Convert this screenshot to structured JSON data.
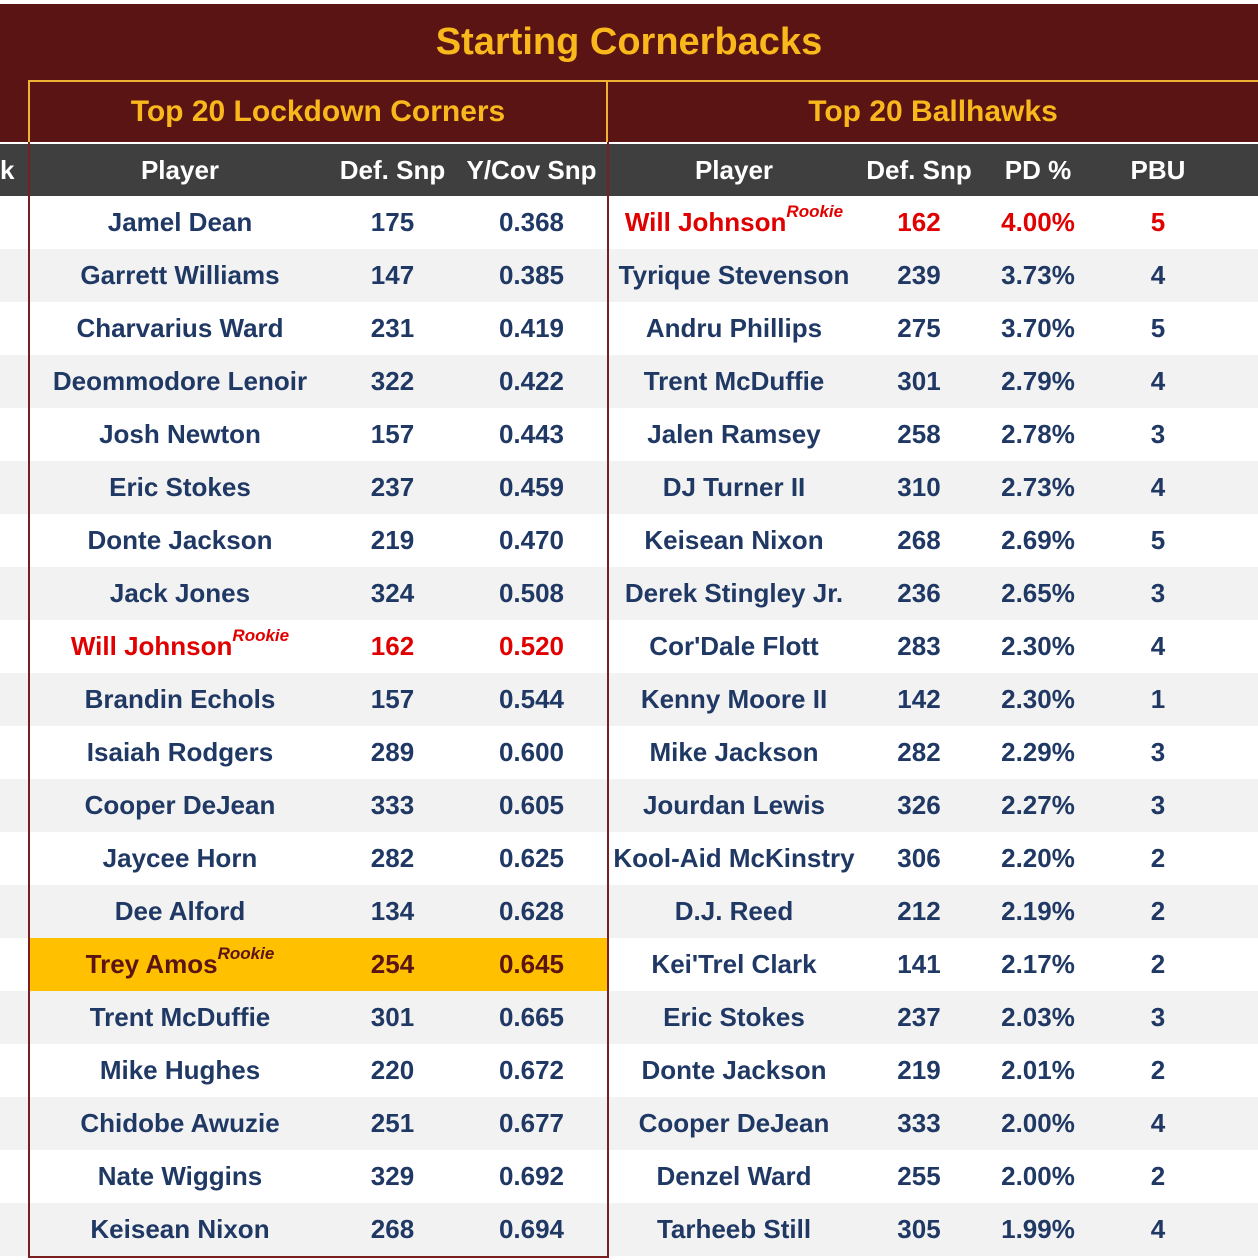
{
  "title": "Starting Cornerbacks",
  "left_section": {
    "title": "Top 20 Lockdown Corners",
    "columns": [
      "Player",
      "Def. Snp",
      "Y/Cov Snp"
    ],
    "rows": [
      {
        "player": "Jamel Dean",
        "snaps": "175",
        "val": "0.368"
      },
      {
        "player": "Garrett Williams",
        "snaps": "147",
        "val": "0.385"
      },
      {
        "player": "Charvarius Ward",
        "snaps": "231",
        "val": "0.419"
      },
      {
        "player": "Deommodore Lenoir",
        "snaps": "322",
        "val": "0.422"
      },
      {
        "player": "Josh Newton",
        "snaps": "157",
        "val": "0.443"
      },
      {
        "player": "Eric Stokes",
        "snaps": "237",
        "val": "0.459"
      },
      {
        "player": "Donte Jackson",
        "snaps": "219",
        "val": "0.470"
      },
      {
        "player": "Jack Jones",
        "snaps": "324",
        "val": "0.508"
      },
      {
        "player": "Will Johnson",
        "snaps": "162",
        "val": "0.520",
        "tag": "Rookie",
        "style": "red"
      },
      {
        "player": "Brandin Echols",
        "snaps": "157",
        "val": "0.544"
      },
      {
        "player": "Isaiah Rodgers",
        "snaps": "289",
        "val": "0.600"
      },
      {
        "player": "Cooper DeJean",
        "snaps": "333",
        "val": "0.605"
      },
      {
        "player": "Jaycee Horn",
        "snaps": "282",
        "val": "0.625"
      },
      {
        "player": "Dee Alford",
        "snaps": "134",
        "val": "0.628"
      },
      {
        "player": "Trey Amos",
        "snaps": "254",
        "val": "0.645",
        "tag": "Rookie",
        "style": "highlight"
      },
      {
        "player": "Trent McDuffie",
        "snaps": "301",
        "val": "0.665"
      },
      {
        "player": "Mike Hughes",
        "snaps": "220",
        "val": "0.672"
      },
      {
        "player": "Chidobe Awuzie",
        "snaps": "251",
        "val": "0.677"
      },
      {
        "player": "Nate Wiggins",
        "snaps": "329",
        "val": "0.692"
      },
      {
        "player": "Keisean Nixon",
        "snaps": "268",
        "val": "0.694"
      }
    ]
  },
  "right_section": {
    "title": "Top 20 Ballhawks",
    "columns": [
      "Player",
      "Def. Snp",
      "PD %",
      "PBU"
    ],
    "rows": [
      {
        "player": "Will Johnson",
        "snaps": "162",
        "pd": "4.00%",
        "pbu": "5",
        "tag": "Rookie",
        "style": "red"
      },
      {
        "player": "Tyrique Stevenson",
        "snaps": "239",
        "pd": "3.73%",
        "pbu": "4"
      },
      {
        "player": "Andru Phillips",
        "snaps": "275",
        "pd": "3.70%",
        "pbu": "5"
      },
      {
        "player": "Trent McDuffie",
        "snaps": "301",
        "pd": "2.79%",
        "pbu": "4"
      },
      {
        "player": "Jalen Ramsey",
        "snaps": "258",
        "pd": "2.78%",
        "pbu": "3"
      },
      {
        "player": "DJ Turner II",
        "snaps": "310",
        "pd": "2.73%",
        "pbu": "4"
      },
      {
        "player": "Keisean Nixon",
        "snaps": "268",
        "pd": "2.69%",
        "pbu": "5"
      },
      {
        "player": "Derek Stingley Jr.",
        "snaps": "236",
        "pd": "2.65%",
        "pbu": "3"
      },
      {
        "player": "Cor'Dale Flott",
        "snaps": "283",
        "pd": "2.30%",
        "pbu": "4"
      },
      {
        "player": "Kenny Moore II",
        "snaps": "142",
        "pd": "2.30%",
        "pbu": "1"
      },
      {
        "player": "Mike Jackson",
        "snaps": "282",
        "pd": "2.29%",
        "pbu": "3"
      },
      {
        "player": "Jourdan Lewis",
        "snaps": "326",
        "pd": "2.27%",
        "pbu": "3"
      },
      {
        "player": "Kool-Aid McKinstry",
        "snaps": "306",
        "pd": "2.20%",
        "pbu": "2"
      },
      {
        "player": "D.J. Reed",
        "snaps": "212",
        "pd": "2.19%",
        "pbu": "2"
      },
      {
        "player": "Kei'Trel Clark",
        "snaps": "141",
        "pd": "2.17%",
        "pbu": "2"
      },
      {
        "player": "Eric Stokes",
        "snaps": "237",
        "pd": "2.03%",
        "pbu": "3"
      },
      {
        "player": "Donte Jackson",
        "snaps": "219",
        "pd": "2.01%",
        "pbu": "2"
      },
      {
        "player": "Cooper DeJean",
        "snaps": "333",
        "pd": "2.00%",
        "pbu": "4"
      },
      {
        "player": "Denzel Ward",
        "snaps": "255",
        "pd": "2.00%",
        "pbu": "2"
      },
      {
        "player": "Tarheeb Still",
        "snaps": "305",
        "pd": "1.99%",
        "pbu": "4"
      }
    ]
  },
  "left_stub_header": "k",
  "colors": {
    "maroon": "#5a1414",
    "gold": "#f9b81b",
    "header_gray": "#3f3f3f",
    "name_blue": "#1f3864",
    "rookie_red": "#e00000",
    "highlight": "#ffc000"
  }
}
